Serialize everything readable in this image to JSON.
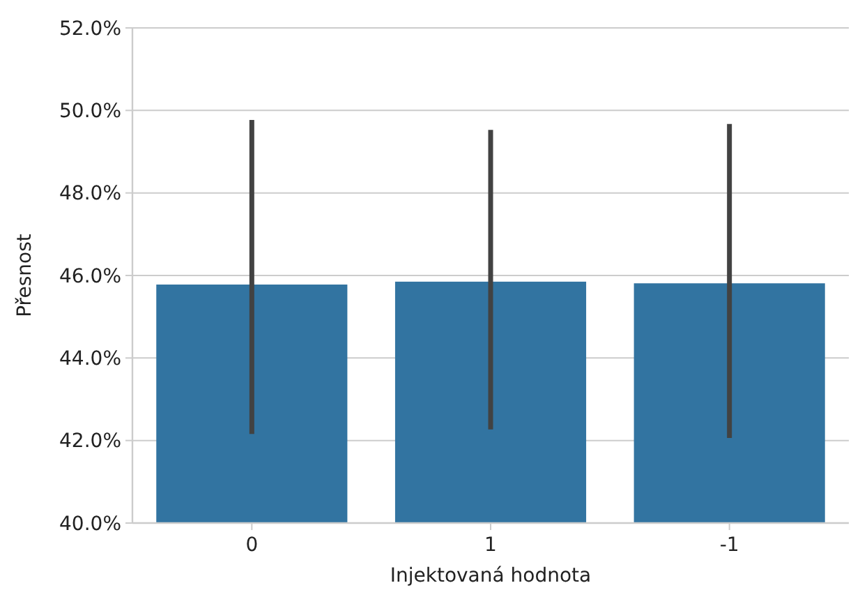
{
  "chart_data": {
    "type": "bar",
    "xlabel": "Injektovaná hodnota",
    "ylabel": "Přesnost",
    "categories": [
      "0",
      "1",
      "-1"
    ],
    "values": [
      45.78,
      45.85,
      45.81
    ],
    "errors": [
      [
        42.16,
        49.77
      ],
      [
        42.27,
        49.53
      ],
      [
        42.06,
        49.67
      ]
    ],
    "color": "#3274a1",
    "ylim": [
      40,
      52
    ],
    "yticks": [
      {
        "value": 40,
        "label": "40.0%"
      },
      {
        "value": 42,
        "label": "42.0%"
      },
      {
        "value": 44,
        "label": "44.0%"
      },
      {
        "value": 46,
        "label": "46.0%"
      },
      {
        "value": 48,
        "label": "48.0%"
      },
      {
        "value": 50,
        "label": "50.0%"
      },
      {
        "value": 52,
        "label": "52.0%"
      }
    ],
    "grid": "y"
  }
}
